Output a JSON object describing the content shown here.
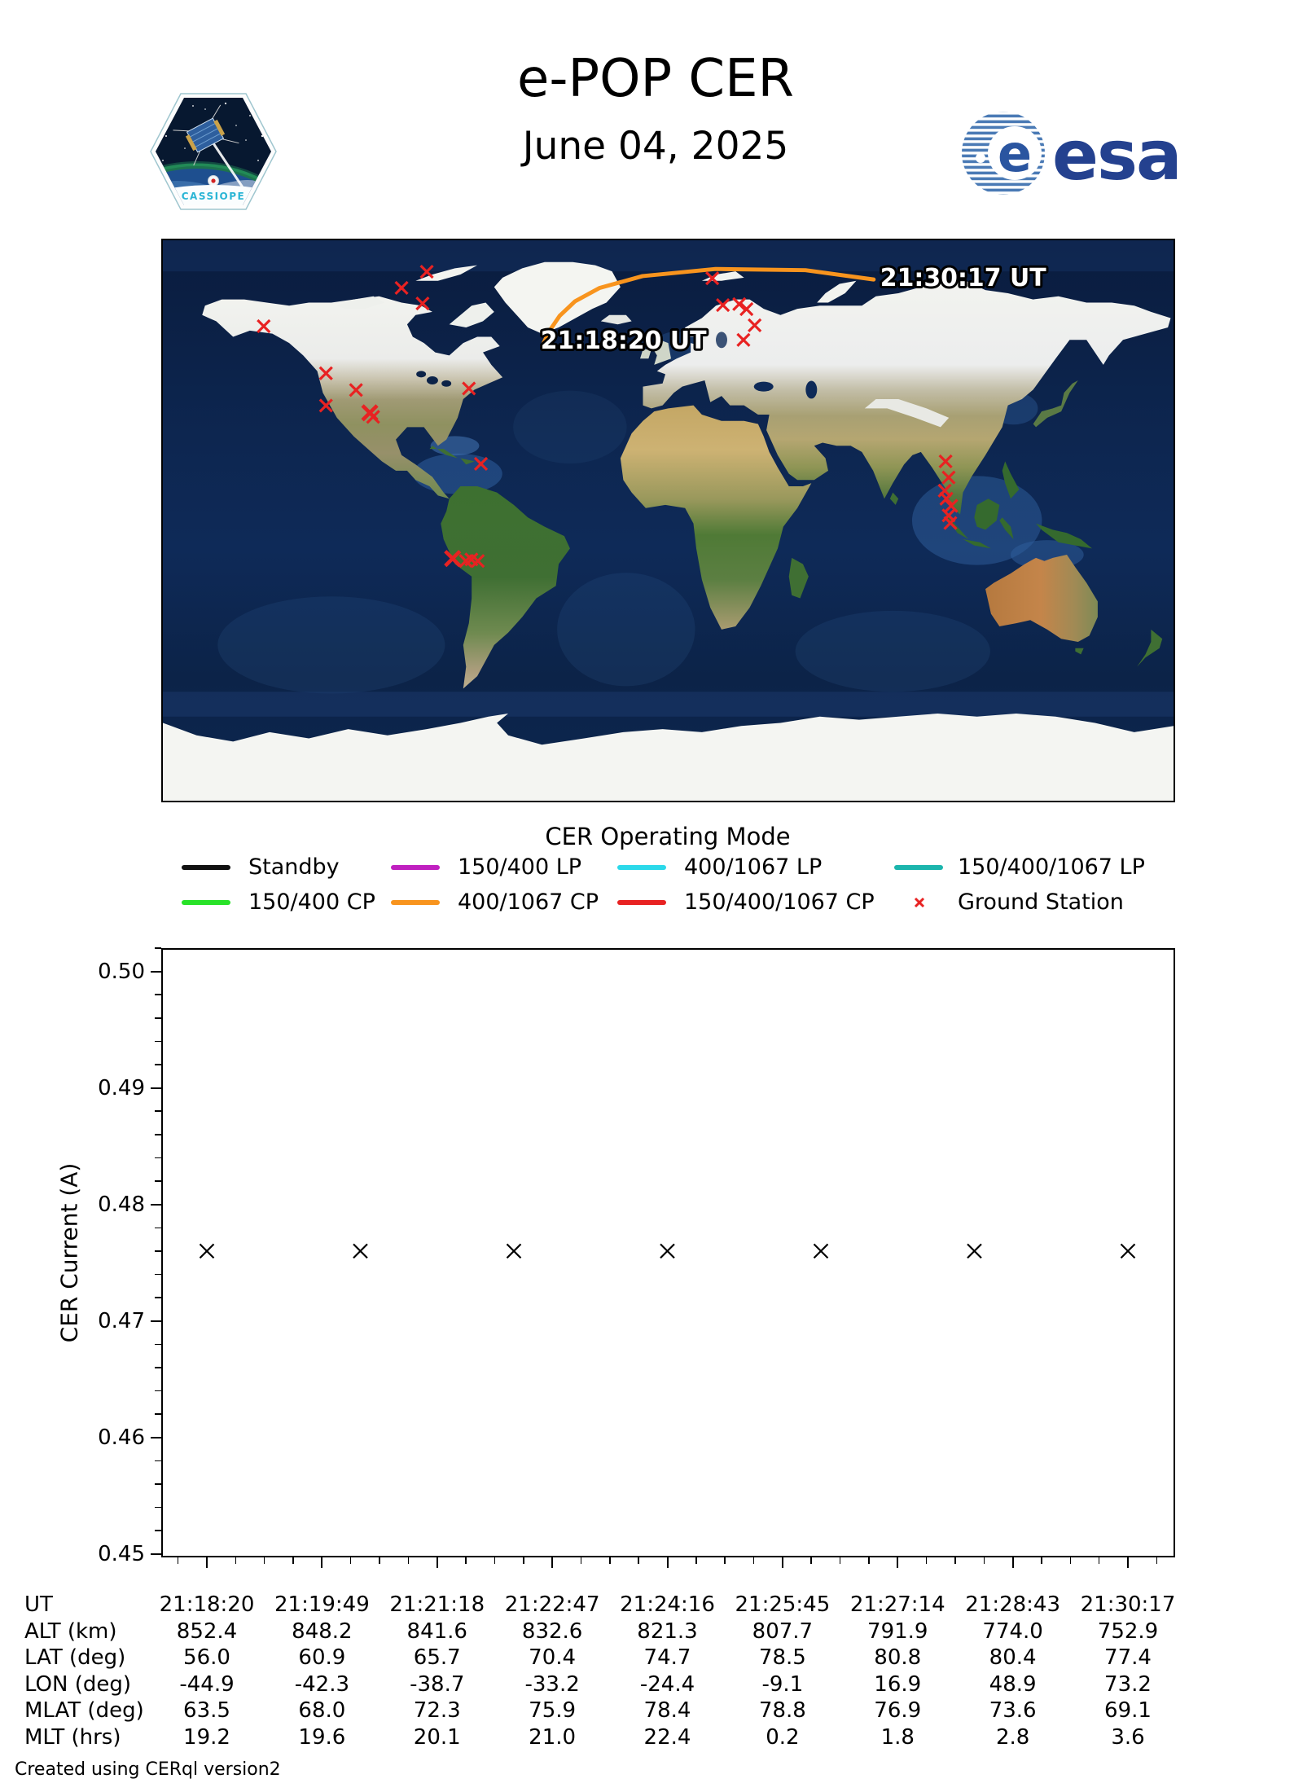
{
  "header": {
    "title": "e-POP CER",
    "date": "June 04, 2025",
    "patch_text": "CASSIOPE",
    "esa_text": "esa"
  },
  "map": {
    "start_label": "21:18:20 UT",
    "end_label": "21:30:17 UT",
    "track_color": "#f8941e",
    "station_color": "#e82222",
    "track_points": [
      [
        -44.9,
        56.0
      ],
      [
        -42.3,
        60.9
      ],
      [
        -38.7,
        65.7
      ],
      [
        -33.2,
        70.4
      ],
      [
        -24.4,
        74.7
      ],
      [
        -9.1,
        78.5
      ],
      [
        16.9,
        80.8
      ],
      [
        48.9,
        80.4
      ],
      [
        73.2,
        77.4
      ]
    ],
    "ground_stations": [
      {
        "lon": -144.1,
        "lat": 62.4
      },
      {
        "lon": -86.0,
        "lat": 79.9
      },
      {
        "lon": -95.0,
        "lat": 74.7
      },
      {
        "lon": -87.5,
        "lat": 69.7
      },
      {
        "lon": -121.9,
        "lat": 47.3
      },
      {
        "lon": -111.2,
        "lat": 41.9
      },
      {
        "lon": -121.9,
        "lat": 36.9
      },
      {
        "lon": -106.3,
        "lat": 34.6,
        "bold": true
      },
      {
        "lon": -105.1,
        "lat": 33.3
      },
      {
        "lon": -71.0,
        "lat": 42.4
      },
      {
        "lon": -66.7,
        "lat": 18.2
      },
      {
        "lon": -76.8,
        "lat": -12.2,
        "bold": true
      },
      {
        "lon": -72.1,
        "lat": -13.0
      },
      {
        "lon": -70.1,
        "lat": -12.5
      },
      {
        "lon": -67.8,
        "lat": -13.0
      },
      {
        "lon": 15.7,
        "lat": 77.8
      },
      {
        "lon": 19.5,
        "lat": 69.2
      },
      {
        "lon": 25.3,
        "lat": 69.5
      },
      {
        "lon": 27.9,
        "lat": 67.9
      },
      {
        "lon": 30.8,
        "lat": 62.7
      },
      {
        "lon": 26.8,
        "lat": 58.0
      },
      {
        "lon": 98.8,
        "lat": 19.0
      },
      {
        "lon": 99.9,
        "lat": 13.8
      },
      {
        "lon": 98.5,
        "lat": 9.6
      },
      {
        "lon": 99.1,
        "lat": 7.0
      },
      {
        "lon": 100.8,
        "lat": 4.7
      },
      {
        "lon": 99.9,
        "lat": 1.6
      },
      {
        "lon": 100.5,
        "lat": -0.8
      }
    ]
  },
  "legend": {
    "title": "CER Operating Mode",
    "entries": [
      {
        "label": "Standby",
        "color": "#111111",
        "type": "line"
      },
      {
        "label": "150/400 LP",
        "color": "#c020c0",
        "type": "line"
      },
      {
        "label": "400/1067 LP",
        "color": "#2bd9ea",
        "type": "line"
      },
      {
        "label": "150/400/1067 LP",
        "color": "#1cb5ad",
        "type": "line"
      },
      {
        "label": "150/400 CP",
        "color": "#28e228",
        "type": "line"
      },
      {
        "label": "400/1067 CP",
        "color": "#f8941e",
        "type": "line"
      },
      {
        "label": "150/400/1067 CP",
        "color": "#e82222",
        "type": "line"
      },
      {
        "label": "Ground Station",
        "color": "#e82222",
        "type": "x-marker"
      }
    ]
  },
  "chart_data": {
    "type": "scatter",
    "ylabel": "CER Current (A)",
    "ylim": [
      0.4497,
      0.502
    ],
    "ytick_labels": [
      "0.50",
      "0.49",
      "0.48",
      "0.47",
      "0.46",
      "0.45"
    ],
    "xtick_labels": [
      "21:18:20",
      "21:19:49",
      "21:21:18",
      "21:22:47",
      "21:24:16",
      "21:25:45",
      "21:27:14",
      "21:28:43",
      "21:30:17"
    ],
    "grid": false,
    "series": [
      {
        "name": "CER Current",
        "marker": "x",
        "color": "#000000",
        "values": [
          0.476,
          0.476,
          0.476,
          0.476,
          0.476,
          0.476,
          0.476
        ]
      }
    ]
  },
  "table": {
    "rows": [
      {
        "label": "UT",
        "values": [
          "21:18:20",
          "21:19:49",
          "21:21:18",
          "21:22:47",
          "21:24:16",
          "21:25:45",
          "21:27:14",
          "21:28:43",
          "21:30:17"
        ]
      },
      {
        "label": "ALT (km)",
        "values": [
          "852.4",
          "848.2",
          "841.6",
          "832.6",
          "821.3",
          "807.7",
          "791.9",
          "774.0",
          "752.9"
        ]
      },
      {
        "label": "LAT (deg)",
        "values": [
          "56.0",
          "60.9",
          "65.7",
          "70.4",
          "74.7",
          "78.5",
          "80.8",
          "80.4",
          "77.4"
        ]
      },
      {
        "label": "LON (deg)",
        "values": [
          "-44.9",
          "-42.3",
          "-38.7",
          "-33.2",
          "-24.4",
          "-9.1",
          "16.9",
          "48.9",
          "73.2"
        ]
      },
      {
        "label": "MLAT (deg)",
        "values": [
          "63.5",
          "68.0",
          "72.3",
          "75.9",
          "78.4",
          "78.8",
          "76.9",
          "73.6",
          "69.1"
        ]
      },
      {
        "label": "MLT (hrs)",
        "values": [
          "19.2",
          "19.6",
          "20.1",
          "21.0",
          "22.4",
          "0.2",
          "1.8",
          "2.8",
          "3.6"
        ]
      }
    ]
  },
  "footer": "Created using CERql version2"
}
